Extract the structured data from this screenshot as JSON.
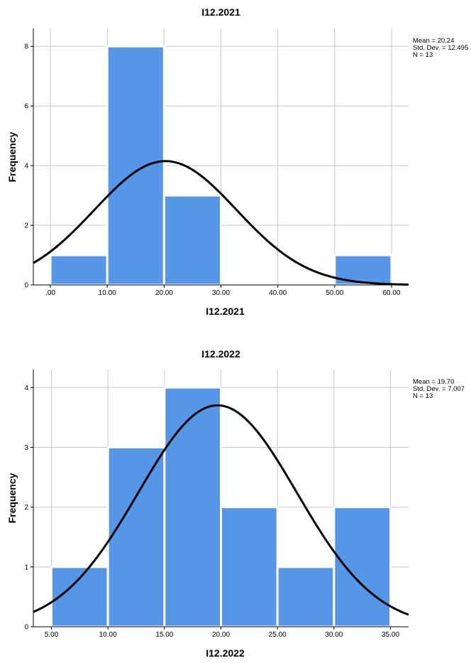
{
  "chart_data": [
    {
      "type": "bar",
      "subtype": "histogram",
      "title": "I12.2021",
      "xlabel": "I12.2021",
      "ylabel": "Frequency",
      "bins": [
        {
          "start": 0,
          "end": 10,
          "count": 1
        },
        {
          "start": 10,
          "end": 20,
          "count": 8
        },
        {
          "start": 20,
          "end": 30,
          "count": 3
        },
        {
          "start": 30,
          "end": 40,
          "count": 0
        },
        {
          "start": 40,
          "end": 50,
          "count": 0
        },
        {
          "start": 50,
          "end": 60,
          "count": 1
        }
      ],
      "xlim": [
        -3,
        63
      ],
      "ylim": [
        0,
        8.6
      ],
      "x_ticks": [
        0,
        10,
        20,
        30,
        40,
        50,
        60
      ],
      "x_tick_labels": [
        ".00",
        "10.00",
        "20.00",
        "30.00",
        "40.00",
        "50.00",
        "60.00"
      ],
      "y_ticks": [
        0,
        2,
        4,
        6,
        8
      ],
      "y_tick_labels": [
        "0",
        "2",
        "4",
        "6",
        "8"
      ],
      "normal_curve": {
        "mean": 20.24,
        "sd": 12.495,
        "n": 13,
        "bin_width": 10
      },
      "stats": [
        "Mean = 20.24",
        "Std. Dev. = 12.495",
        "N = 13"
      ]
    },
    {
      "type": "bar",
      "subtype": "histogram",
      "title": "I12.2022",
      "xlabel": "I12.2022",
      "ylabel": "Frequency",
      "bins": [
        {
          "start": 5,
          "end": 10,
          "count": 1
        },
        {
          "start": 10,
          "end": 15,
          "count": 3
        },
        {
          "start": 15,
          "end": 20,
          "count": 4
        },
        {
          "start": 20,
          "end": 25,
          "count": 2
        },
        {
          "start": 25,
          "end": 30,
          "count": 1
        },
        {
          "start": 30,
          "end": 35,
          "count": 2
        }
      ],
      "xlim": [
        3.4,
        36.6
      ],
      "ylim": [
        0,
        4.3
      ],
      "x_ticks": [
        5,
        10,
        15,
        20,
        25,
        30,
        35
      ],
      "x_tick_labels": [
        "5.00",
        "10.00",
        "15.00",
        "20.00",
        "25.00",
        "30.00",
        "35.00"
      ],
      "y_ticks": [
        0,
        1,
        2,
        3,
        4
      ],
      "y_tick_labels": [
        "0",
        "1",
        "2",
        "3",
        "4"
      ],
      "normal_curve": {
        "mean": 19.7,
        "sd": 7.007,
        "n": 13,
        "bin_width": 5
      },
      "stats": [
        "Mean = 19.70",
        "Std. Dev. = 7.007",
        "N = 13"
      ]
    }
  ]
}
